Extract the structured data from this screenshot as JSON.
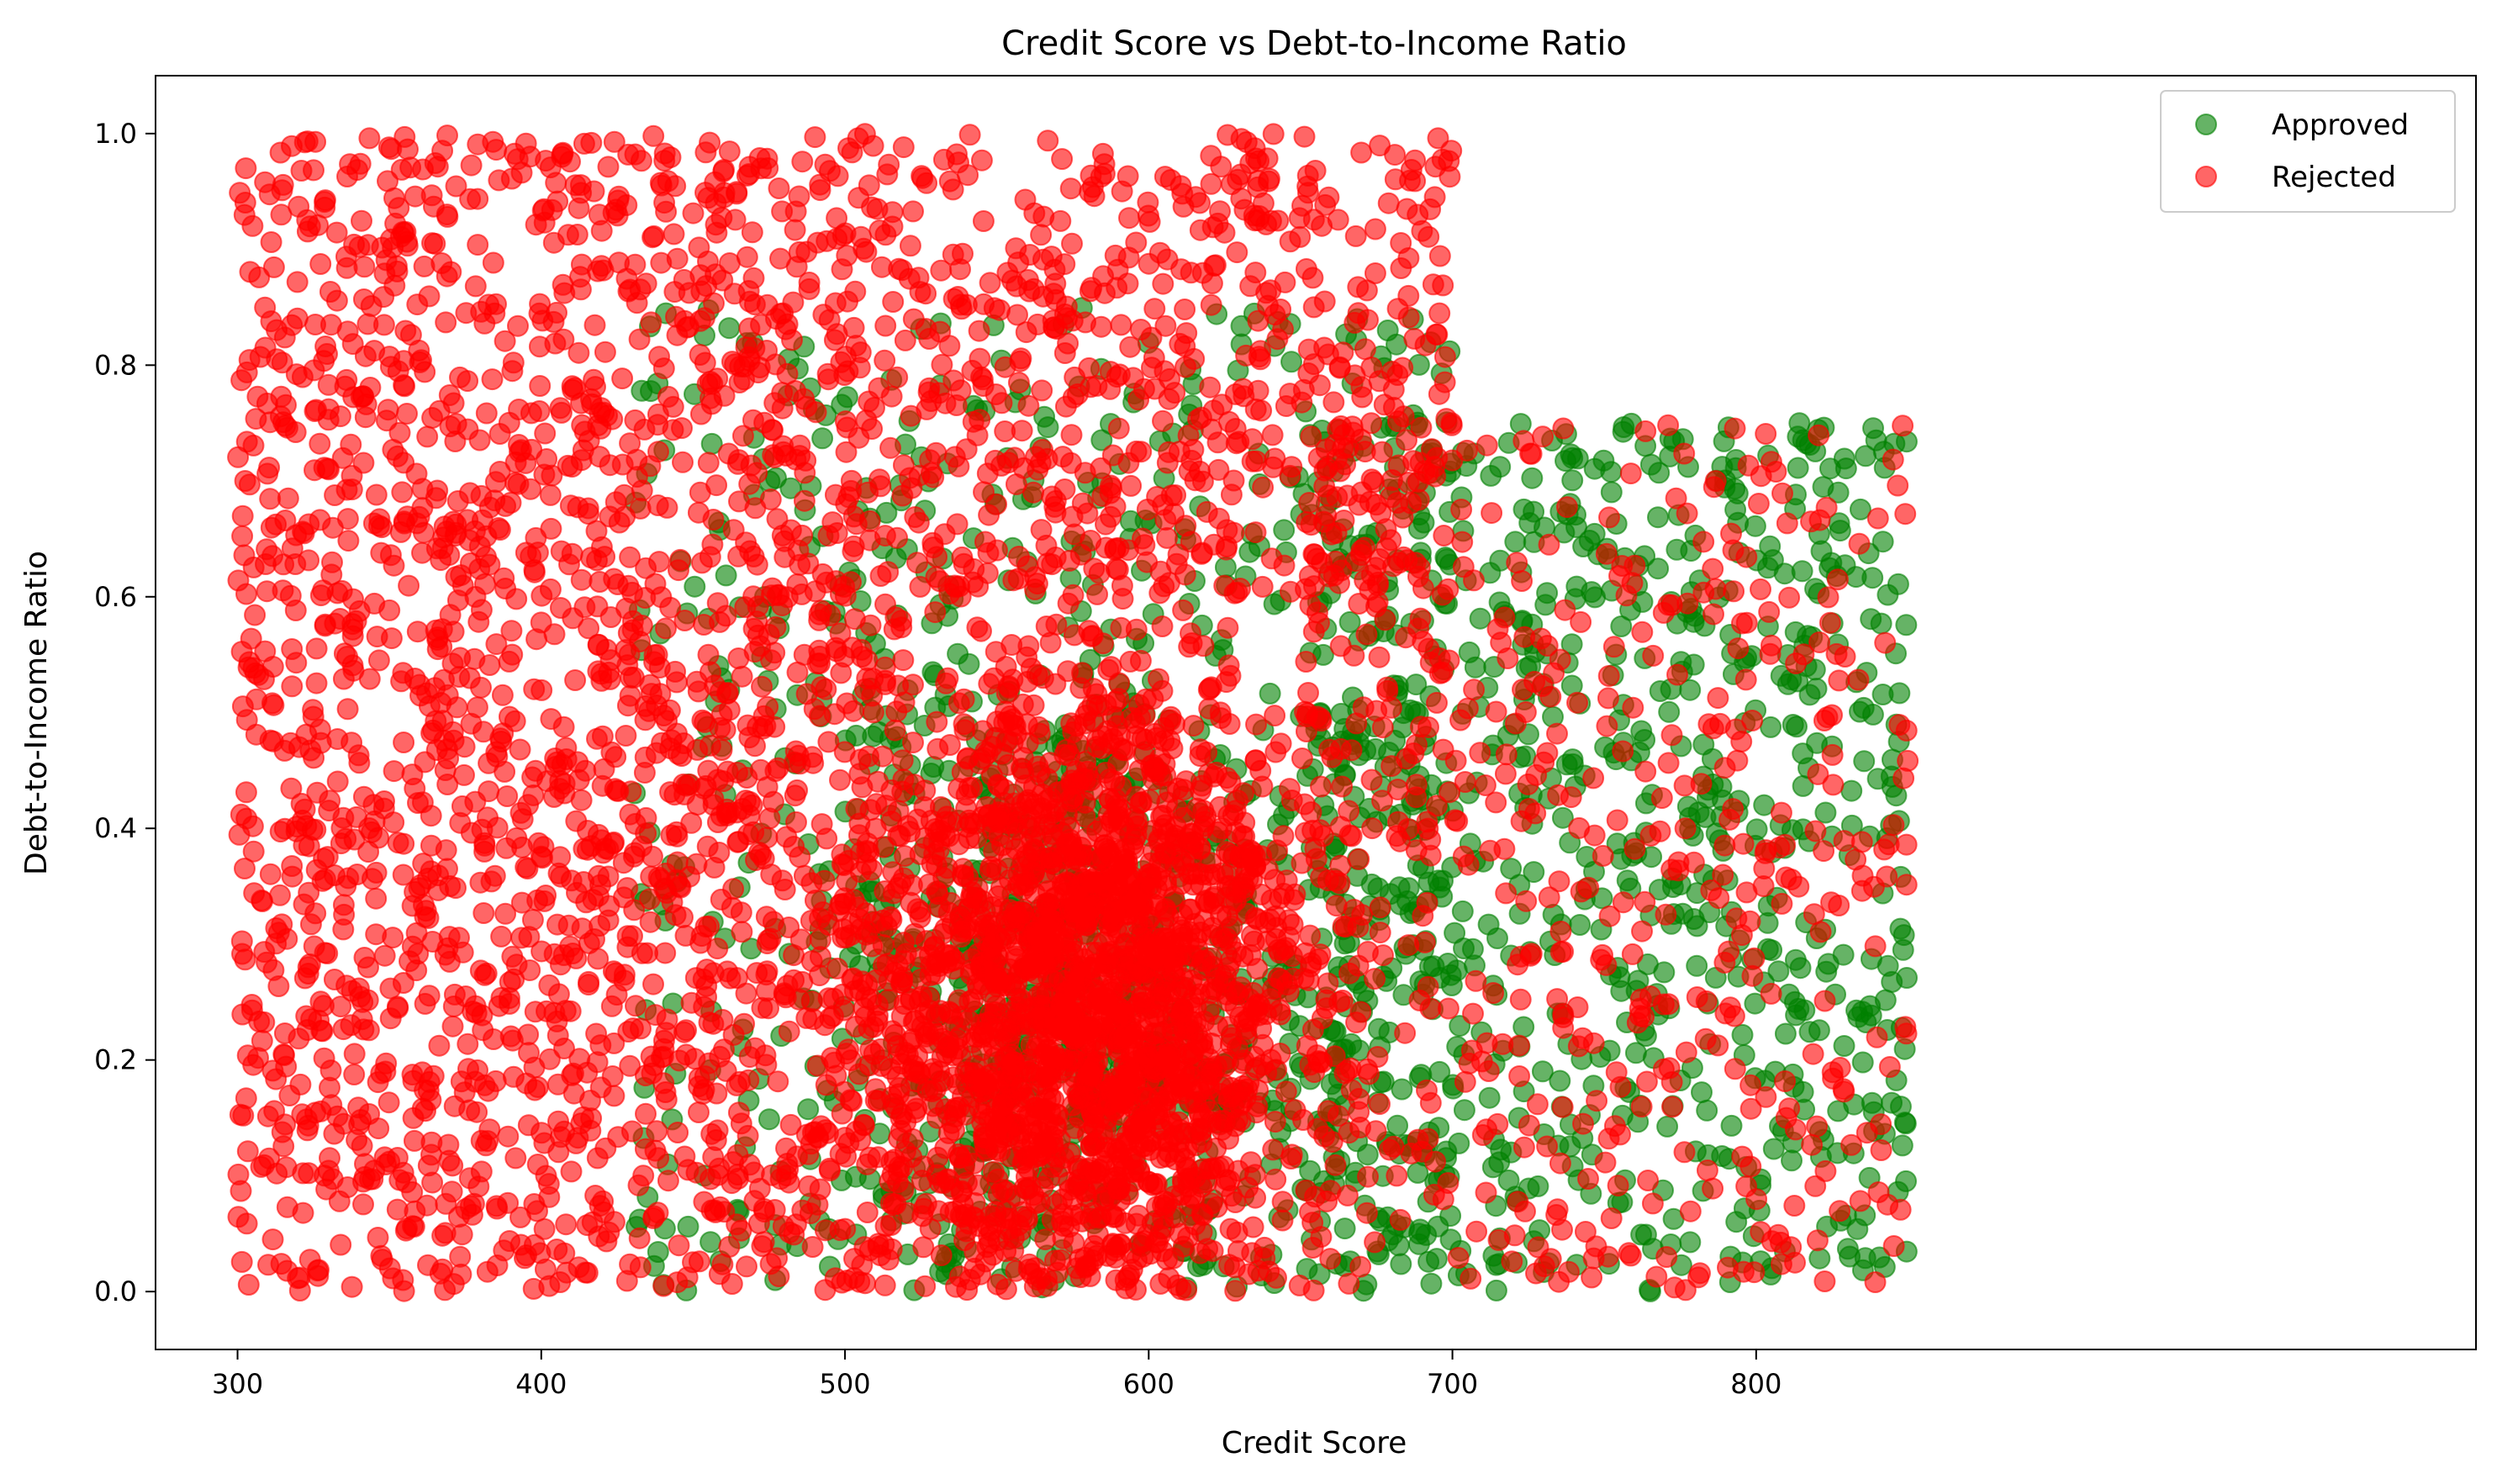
{
  "chart_data": {
    "type": "scatter",
    "title": "Credit Score vs Debt-to-Income Ratio",
    "xlabel": "Credit Score",
    "ylabel": "Debt-to-Income Ratio",
    "xlim": [
      273,
      1037
    ],
    "ylim": [
      -0.05,
      1.05
    ],
    "xticks": [
      "300",
      "400",
      "500",
      "600",
      "700",
      "800"
    ],
    "xtick_values": [
      300,
      400,
      500,
      600,
      700,
      800
    ],
    "yticks": [
      "0.0",
      "0.2",
      "0.4",
      "0.6",
      "0.8",
      "1.0"
    ],
    "ytick_values": [
      0.0,
      0.2,
      0.4,
      0.6,
      0.8,
      1.0
    ],
    "grid": false,
    "legend_position": "top-right",
    "series": [
      {
        "name": "Approved",
        "color": "#008000",
        "alpha": 0.6
      },
      {
        "name": "Rejected",
        "color": "#ff0000",
        "alpha": 0.6
      }
    ],
    "distribution": [
      {
        "series": "Rejected",
        "region": "uniform",
        "x_range": [
          300,
          420
        ],
        "y_range": [
          0,
          1.0
        ],
        "count": 1100
      },
      {
        "series": "Rejected",
        "region": "uniform",
        "x_range": [
          420,
          700
        ],
        "y_range": [
          0.6,
          1.0
        ],
        "count": 900
      },
      {
        "series": "Rejected",
        "region": "uniform",
        "x_range": [
          420,
          520
        ],
        "y_range": [
          0,
          0.6
        ],
        "count": 550
      },
      {
        "series": "Rejected",
        "region": "gaussian",
        "x_center": 580,
        "x_std": 38,
        "y_center": 0.25,
        "y_std": 0.15,
        "count": 2200
      },
      {
        "series": "Rejected",
        "region": "uniform",
        "x_range": [
          650,
          850
        ],
        "y_range": [
          0,
          0.75
        ],
        "count": 550
      },
      {
        "series": "Approved",
        "region": "uniform",
        "x_range": [
          430,
          700
        ],
        "y_range": [
          0,
          0.85
        ],
        "count": 600
      },
      {
        "series": "Approved",
        "region": "gaussian",
        "x_center": 580,
        "x_std": 40,
        "y_center": 0.25,
        "y_std": 0.15,
        "count": 500
      },
      {
        "series": "Approved",
        "region": "uniform",
        "x_range": [
          650,
          850
        ],
        "y_range": [
          0,
          0.75
        ],
        "count": 800
      }
    ]
  }
}
